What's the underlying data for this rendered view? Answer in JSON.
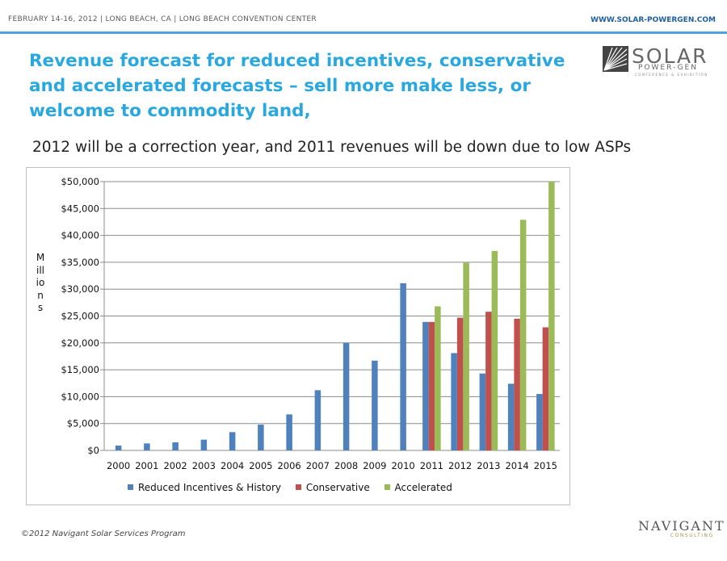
{
  "header": {
    "event": "FEBRUARY 14-16, 2012 | LONG BEACH, CA | LONG BEACH CONVENTION CENTER",
    "url": "WWW.SOLAR-POWERGEN.COM"
  },
  "title": "Revenue forecast for reduced incentives,  conservative and accelerated forecasts – sell more make less,  or welcome to commodity land,",
  "subtitle": "2012 will be a correction year, and 2011 revenues will be down due to low ASPs",
  "logo": {
    "word": "SOLAR",
    "line2": "POWER-GEN",
    "line3": "CONFERENCE & EXHIBITION"
  },
  "footer": {
    "copyright": "©2012 Navigant Solar Services Program"
  },
  "navigant": {
    "word": "NAVIGANT",
    "sub": "CONSULTING"
  },
  "colors": {
    "accent": "#29a8e0",
    "series1": "#4f81bd",
    "series2": "#c0504d",
    "series3": "#9bbb59"
  },
  "chart_data": {
    "type": "bar",
    "title": "",
    "xlabel": "",
    "ylabel": "Millions",
    "ylim": [
      0,
      50000
    ],
    "yticks": [
      0,
      5000,
      10000,
      15000,
      20000,
      25000,
      30000,
      35000,
      40000,
      45000,
      50000
    ],
    "ytick_labels": [
      "$0",
      "$5,000",
      "$10,000",
      "$15,000",
      "$20,000",
      "$25,000",
      "$30,000",
      "$35,000",
      "$40,000",
      "$45,000",
      "$50,000"
    ],
    "grid": true,
    "legend_position": "bottom",
    "categories": [
      "2000",
      "2001",
      "2002",
      "2003",
      "2004",
      "2005",
      "2006",
      "2007",
      "2008",
      "2009",
      "2010",
      "2011",
      "2012",
      "2013",
      "2014",
      "2015"
    ],
    "series": [
      {
        "name": "Reduced Incentives & History",
        "color": "#4f81bd",
        "values": [
          900,
          1300,
          1500,
          2000,
          3400,
          4800,
          6700,
          11200,
          20000,
          16700,
          31100,
          23900,
          18100,
          14300,
          12400,
          10500
        ]
      },
      {
        "name": "Conservative",
        "color": "#c0504d",
        "values": [
          null,
          null,
          null,
          null,
          null,
          null,
          null,
          null,
          null,
          null,
          null,
          23900,
          24700,
          25800,
          24500,
          22900
        ]
      },
      {
        "name": "Accelerated",
        "color": "#9bbb59",
        "values": [
          null,
          null,
          null,
          null,
          null,
          null,
          null,
          null,
          null,
          null,
          null,
          26800,
          34900,
          37100,
          42900,
          50000
        ]
      }
    ]
  }
}
